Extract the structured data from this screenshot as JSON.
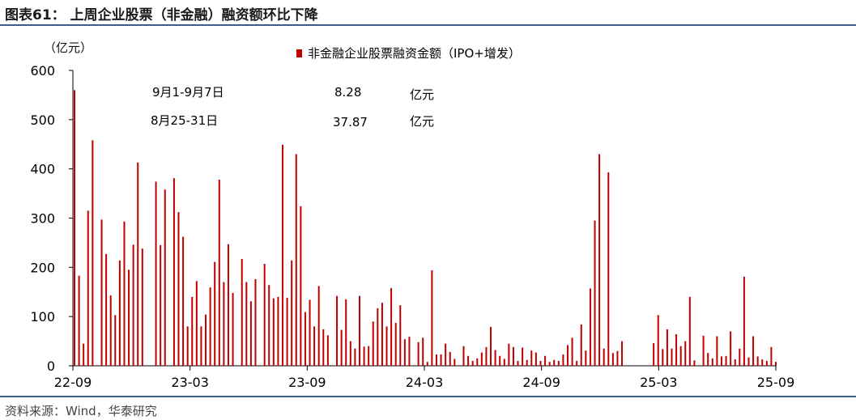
{
  "header": {
    "title": "图表61：  上周企业股票（非金融）融资额环比下降"
  },
  "footer": {
    "source": "资料来源：Wind，华泰研究"
  },
  "chart_data": {
    "type": "bar",
    "ylabel": "（亿元）",
    "ylim": [
      0,
      600
    ],
    "yticks": [
      0,
      100,
      200,
      300,
      400,
      500,
      600
    ],
    "xticks": [
      "22-09",
      "23-03",
      "23-09",
      "24-03",
      "24-09",
      "25-03",
      "25-09"
    ],
    "colors": {
      "bar": "#c00000",
      "axis": "#000000",
      "rule": "#3b5f8a"
    },
    "legend": {
      "label": "非金融企业股票融资金额（IPO+增发）",
      "position": "top-center"
    },
    "annotations": [
      {
        "period": "9月1-9月7日",
        "value": "8.28",
        "unit": "亿元"
      },
      {
        "period": "8月25-31日",
        "value": "37.87",
        "unit": "亿元"
      }
    ],
    "series": [
      {
        "values": [
          560,
          183,
          45,
          315,
          458,
          0,
          297,
          227,
          143,
          103,
          214,
          293,
          195,
          246,
          413,
          238,
          0,
          0,
          374,
          245,
          358,
          0,
          381,
          312,
          262,
          80,
          140,
          172,
          80,
          104,
          159,
          211,
          378,
          170,
          247,
          148,
          0,
          217,
          170,
          131,
          176,
          0,
          207,
          164,
          137,
          140,
          449,
          138,
          214,
          430,
          324,
          109,
          134,
          80,
          162,
          74,
          62,
          0,
          142,
          73,
          135,
          50,
          35,
          142,
          39,
          40,
          90,
          117,
          128,
          80,
          158,
          87,
          123,
          54,
          59,
          0,
          48,
          57,
          8,
          194,
          23,
          23,
          45,
          28,
          14,
          0,
          40,
          20,
          10,
          15,
          27,
          38,
          79,
          32,
          20,
          14,
          45,
          38,
          10,
          37,
          12,
          31,
          27,
          10,
          20,
          8,
          12,
          10,
          23,
          42,
          57,
          10,
          84,
          31,
          157,
          295,
          430,
          35,
          393,
          26,
          30,
          50,
          0,
          0,
          0,
          0,
          0,
          0,
          46,
          103,
          34,
          74,
          35,
          64,
          40,
          50,
          140,
          11,
          0,
          61,
          26,
          15,
          60,
          19,
          20,
          70,
          13,
          35,
          181,
          17,
          60,
          19,
          13,
          10,
          38,
          8
        ]
      }
    ]
  }
}
